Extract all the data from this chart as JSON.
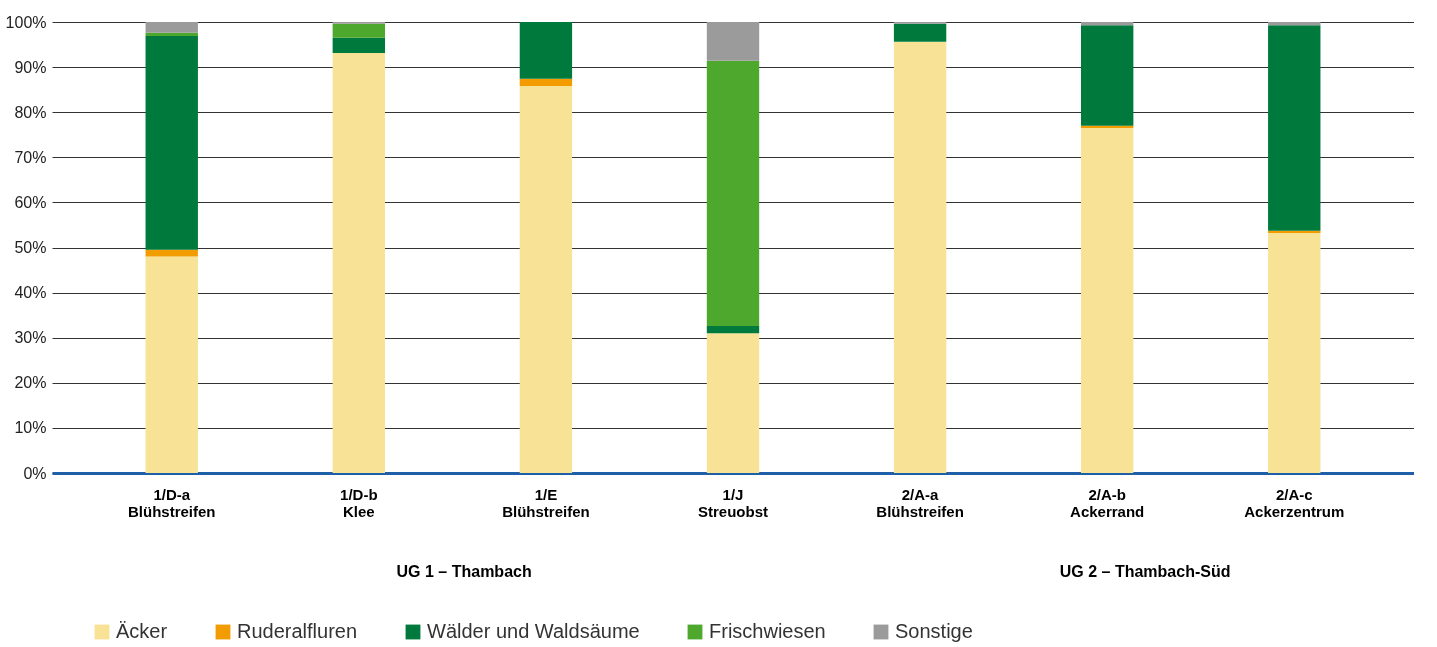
{
  "chart_data": {
    "type": "bar",
    "stacked": true,
    "categories": [
      "1/D-a\nBlühstreifen",
      "1/D-b\nKlee",
      "1/E\nBlühstreifen",
      "1/J\nStreuobst",
      "2/A-a\nBlühstreifen",
      "2/A-b\nAckerrand",
      "2/A-c\nAckerzentrum"
    ],
    "series": [
      {
        "name": "Äcker",
        "color": "#f7e295",
        "values": [
          48,
          93.1,
          85.8,
          31,
          95.6,
          76.5,
          53.2
        ]
      },
      {
        "name": "Ruderalfluren",
        "color": "#f39c00",
        "values": [
          1.5,
          null,
          1.6,
          null,
          null,
          0.5,
          0.5
        ]
      },
      {
        "name": "Wälder und Waldsäume",
        "color": "#00793d",
        "values": [
          47.4,
          3.4,
          12.6,
          1.6,
          4,
          22.3,
          45.6
        ]
      },
      {
        "name": "Frischwiesen",
        "color": "#4ea82e",
        "values": [
          0.7,
          3.1,
          null,
          58.8,
          null,
          null,
          null
        ]
      },
      {
        "name": "Sonstige",
        "color": "#9b9b9b",
        "values": [
          2.4,
          0.4,
          null,
          8.6,
          0.4,
          0.7,
          0.7
        ]
      }
    ],
    "ylim": [
      0,
      100
    ],
    "yticks": [
      {
        "value": 0,
        "label": "0%"
      },
      {
        "value": 10,
        "label": "10%"
      },
      {
        "value": 20,
        "label": "20%"
      },
      {
        "value": 30,
        "label": "30%"
      },
      {
        "value": 40,
        "label": "40%"
      },
      {
        "value": 50,
        "label": "50%"
      },
      {
        "value": 60,
        "label": "60%"
      },
      {
        "value": 70,
        "label": "70%"
      },
      {
        "value": 80,
        "label": "80%"
      },
      {
        "value": 90,
        "label": "90%"
      },
      {
        "value": 100,
        "label": "100%"
      }
    ],
    "grid": "y",
    "legend": "bottom",
    "annotations": [
      "UG 1 – Thambach",
      "UG 2 – Thambach-Süd"
    ]
  }
}
